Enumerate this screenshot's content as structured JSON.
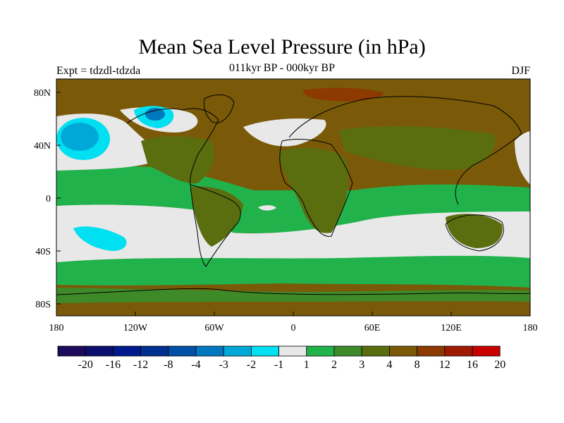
{
  "title": "Mean Sea Level Pressure (in hPa)",
  "subtitle": "011kyr BP - 000kyr BP",
  "left_label": "Expt = tdzdl-tdzda",
  "right_label": "DJF",
  "x_ticks": [
    "180",
    "120W",
    "60W",
    "0",
    "60E",
    "120E",
    "180"
  ],
  "y_ticks": [
    "80N",
    "40N",
    "0",
    "40S",
    "80S"
  ],
  "colorbar": {
    "labels": [
      "-20",
      "-16",
      "-12",
      "-8",
      "-4",
      "-3",
      "-2",
      "-1",
      "1",
      "2",
      "3",
      "4",
      "8",
      "12",
      "16",
      "20"
    ],
    "colors": [
      "#1c0a5a",
      "#0a0f6e",
      "#001a8c",
      "#00308f",
      "#0050a8",
      "#0078c0",
      "#00a8d8",
      "#00e0f0",
      "#e8e8e8",
      "#22b24c",
      "#3f8a28",
      "#5a6e10",
      "#7a5a08",
      "#8c3a00",
      "#a01a00",
      "#c80000"
    ]
  },
  "map_colors": {
    "background": "#7a5a08",
    "near_zero": "#e8e8e8",
    "level_1_2": "#22b24c",
    "level_2_3": "#3f8a28",
    "level_3_4": "#5a6e10",
    "level_8_12": "#8c3a00",
    "neg_2_1": "#00e0f0",
    "neg_3_2": "#00a8d8",
    "neg_4_3": "#0078c0",
    "coast": "#000000"
  }
}
